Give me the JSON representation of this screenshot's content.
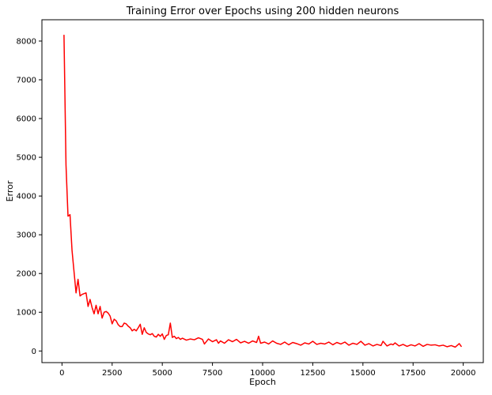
{
  "chart_data": {
    "type": "line",
    "title": "Training Error over Epochs using 200 hidden neurons",
    "xlabel": "Epoch",
    "ylabel": "Error",
    "xlim": [
      -1000,
      21000
    ],
    "ylim": [
      -300,
      8550
    ],
    "xticks": [
      0,
      2500,
      5000,
      7500,
      10000,
      12500,
      15000,
      17500,
      20000
    ],
    "yticks": [
      0,
      1000,
      2000,
      3000,
      4000,
      5000,
      6000,
      7000,
      8000
    ],
    "grid": false,
    "legend": "none",
    "series": [
      {
        "color": "#ff0000",
        "points": [
          [
            100,
            8150
          ],
          [
            200,
            4800
          ],
          [
            300,
            3480
          ],
          [
            400,
            3520
          ],
          [
            500,
            2600
          ],
          [
            600,
            2050
          ],
          [
            700,
            1500
          ],
          [
            800,
            1850
          ],
          [
            900,
            1420
          ],
          [
            1000,
            1460
          ],
          [
            1100,
            1480
          ],
          [
            1200,
            1500
          ],
          [
            1300,
            1150
          ],
          [
            1400,
            1330
          ],
          [
            1500,
            1120
          ],
          [
            1600,
            960
          ],
          [
            1700,
            1180
          ],
          [
            1800,
            960
          ],
          [
            1900,
            1150
          ],
          [
            2000,
            850
          ],
          [
            2100,
            1000
          ],
          [
            2200,
            1020
          ],
          [
            2300,
            980
          ],
          [
            2400,
            900
          ],
          [
            2500,
            700
          ],
          [
            2600,
            820
          ],
          [
            2700,
            780
          ],
          [
            2800,
            680
          ],
          [
            2900,
            630
          ],
          [
            3000,
            630
          ],
          [
            3100,
            720
          ],
          [
            3200,
            700
          ],
          [
            3300,
            640
          ],
          [
            3400,
            600
          ],
          [
            3500,
            520
          ],
          [
            3600,
            560
          ],
          [
            3700,
            520
          ],
          [
            3800,
            600
          ],
          [
            3900,
            690
          ],
          [
            4000,
            430
          ],
          [
            4100,
            600
          ],
          [
            4200,
            480
          ],
          [
            4300,
            440
          ],
          [
            4400,
            420
          ],
          [
            4500,
            450
          ],
          [
            4600,
            380
          ],
          [
            4700,
            360
          ],
          [
            4800,
            430
          ],
          [
            4900,
            380
          ],
          [
            5000,
            440
          ],
          [
            5100,
            300
          ],
          [
            5200,
            400
          ],
          [
            5300,
            420
          ],
          [
            5400,
            720
          ],
          [
            5500,
            350
          ],
          [
            5600,
            380
          ],
          [
            5700,
            320
          ],
          [
            5800,
            350
          ],
          [
            5900,
            300
          ],
          [
            6000,
            330
          ],
          [
            6200,
            280
          ],
          [
            6400,
            310
          ],
          [
            6600,
            290
          ],
          [
            6800,
            340
          ],
          [
            7000,
            300
          ],
          [
            7100,
            180
          ],
          [
            7300,
            310
          ],
          [
            7500,
            240
          ],
          [
            7700,
            290
          ],
          [
            7800,
            200
          ],
          [
            7900,
            260
          ],
          [
            8100,
            200
          ],
          [
            8300,
            290
          ],
          [
            8500,
            240
          ],
          [
            8700,
            300
          ],
          [
            8900,
            210
          ],
          [
            9100,
            250
          ],
          [
            9300,
            200
          ],
          [
            9500,
            260
          ],
          [
            9700,
            220
          ],
          [
            9800,
            380
          ],
          [
            9900,
            200
          ],
          [
            10100,
            230
          ],
          [
            10300,
            180
          ],
          [
            10500,
            260
          ],
          [
            10700,
            200
          ],
          [
            10900,
            170
          ],
          [
            11100,
            230
          ],
          [
            11300,
            160
          ],
          [
            11500,
            220
          ],
          [
            11700,
            190
          ],
          [
            11900,
            150
          ],
          [
            12100,
            210
          ],
          [
            12300,
            180
          ],
          [
            12500,
            250
          ],
          [
            12700,
            170
          ],
          [
            12900,
            200
          ],
          [
            13100,
            180
          ],
          [
            13300,
            230
          ],
          [
            13500,
            160
          ],
          [
            13700,
            220
          ],
          [
            13900,
            180
          ],
          [
            14100,
            230
          ],
          [
            14300,
            150
          ],
          [
            14500,
            200
          ],
          [
            14700,
            170
          ],
          [
            14900,
            250
          ],
          [
            15100,
            150
          ],
          [
            15300,
            190
          ],
          [
            15500,
            130
          ],
          [
            15700,
            170
          ],
          [
            15900,
            140
          ],
          [
            16000,
            250
          ],
          [
            16200,
            130
          ],
          [
            16400,
            180
          ],
          [
            16500,
            160
          ],
          [
            16600,
            210
          ],
          [
            16800,
            130
          ],
          [
            17000,
            170
          ],
          [
            17200,
            120
          ],
          [
            17400,
            160
          ],
          [
            17600,
            130
          ],
          [
            17800,
            190
          ],
          [
            18000,
            120
          ],
          [
            18200,
            170
          ],
          [
            18400,
            150
          ],
          [
            18600,
            160
          ],
          [
            18800,
            130
          ],
          [
            19000,
            150
          ],
          [
            19200,
            110
          ],
          [
            19400,
            140
          ],
          [
            19600,
            100
          ],
          [
            19800,
            190
          ],
          [
            19900,
            120
          ]
        ]
      }
    ]
  }
}
